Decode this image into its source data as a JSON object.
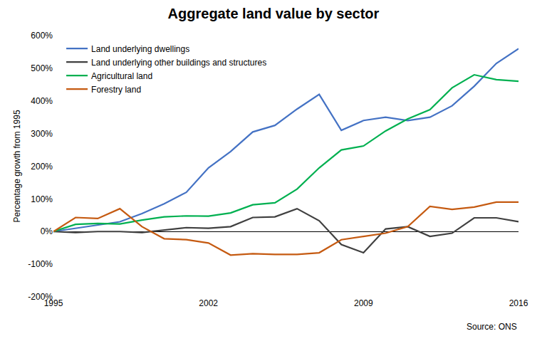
{
  "chart_data": {
    "type": "line",
    "title": "Aggregate land value by sector",
    "y_label": "Percentage growth from 1995",
    "source": "Source: ONS",
    "x": [
      1995,
      1996,
      1997,
      1998,
      1999,
      2000,
      2001,
      2002,
      2003,
      2004,
      2005,
      2006,
      2007,
      2008,
      2009,
      2010,
      2011,
      2012,
      2013,
      2014,
      2015,
      2016
    ],
    "xlim": [
      1995,
      2016
    ],
    "xticks": [
      1995,
      2002,
      2009,
      2016
    ],
    "ylim": [
      -200,
      600
    ],
    "yticks": [
      {
        "value": -200,
        "label": "-200%"
      },
      {
        "value": -100,
        "label": "-100%"
      },
      {
        "value": 0,
        "label": "0%"
      },
      {
        "value": 100,
        "label": "100%"
      },
      {
        "value": 200,
        "label": "200%"
      },
      {
        "value": 300,
        "label": "300%"
      },
      {
        "value": 400,
        "label": "400%"
      },
      {
        "value": 500,
        "label": "500%"
      },
      {
        "value": 600,
        "label": "600%"
      }
    ],
    "grid": false,
    "legend": "top-left",
    "series": [
      {
        "name": "Land underlying dwellings",
        "color": "#4472c4",
        "values": [
          0,
          10,
          20,
          30,
          55,
          85,
          120,
          195,
          245,
          305,
          325,
          375,
          420,
          310,
          340,
          350,
          340,
          350,
          385,
          445,
          515,
          560
        ]
      },
      {
        "name": "Land underlying other buildings and structures",
        "color": "#404040",
        "values": [
          0,
          -3,
          0,
          0,
          -3,
          5,
          12,
          10,
          15,
          43,
          45,
          70,
          33,
          -40,
          -65,
          8,
          15,
          -15,
          -5,
          42,
          42,
          30
        ]
      },
      {
        "name": "Agricultural land",
        "color": "#00b050",
        "values": [
          0,
          22,
          25,
          23,
          35,
          45,
          48,
          47,
          57,
          82,
          88,
          130,
          195,
          250,
          262,
          308,
          345,
          373,
          440,
          480,
          465,
          460
        ]
      },
      {
        "name": "Forestry land",
        "color": "#c55a11",
        "values": [
          0,
          43,
          40,
          70,
          15,
          -22,
          -25,
          -35,
          -72,
          -68,
          -70,
          -70,
          -65,
          -25,
          -15,
          -5,
          15,
          77,
          68,
          75,
          90,
          90
        ]
      }
    ]
  }
}
